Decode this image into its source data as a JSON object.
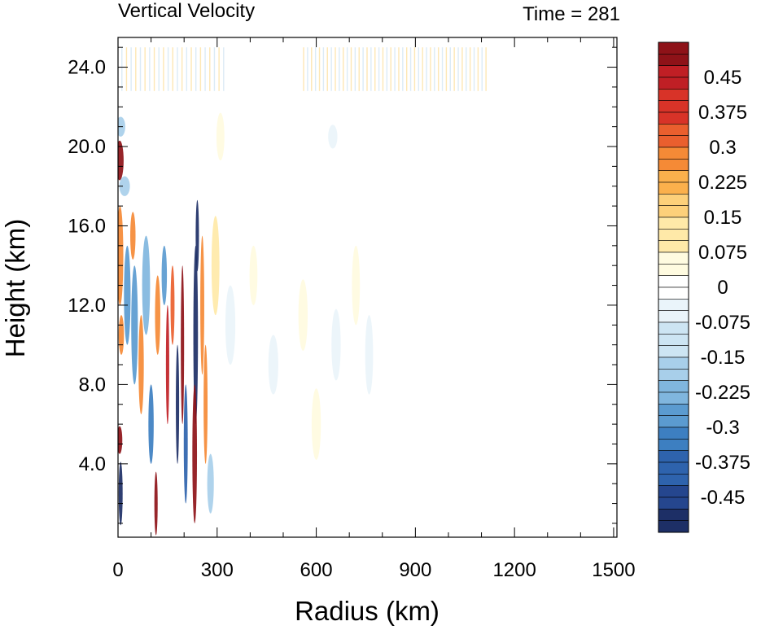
{
  "chart_data": {
    "type": "heatmap",
    "title_left": "Vertical Velocity",
    "title_right": "Time = 281",
    "xlabel": "Radius (km)",
    "ylabel": "Height (km)",
    "xlim": [
      0,
      1510
    ],
    "ylim": [
      0.3,
      25.5
    ],
    "x_ticks": [
      {
        "value": 0,
        "label": "0"
      },
      {
        "value": 300,
        "label": "300"
      },
      {
        "value": 600,
        "label": "600"
      },
      {
        "value": 900,
        "label": "900"
      },
      {
        "value": 1200,
        "label": "1200"
      },
      {
        "value": 1500,
        "label": "1500"
      }
    ],
    "y_ticks": [
      {
        "value": 4,
        "label": "4.0"
      },
      {
        "value": 8,
        "label": "8.0"
      },
      {
        "value": 12,
        "label": "12.0"
      },
      {
        "value": 16,
        "label": "16.0"
      },
      {
        "value": 20,
        "label": "20.0"
      },
      {
        "value": 24,
        "label": "24.0"
      }
    ],
    "grid": false,
    "colorbar": {
      "placement": "right",
      "min": -0.525,
      "max": 0.525,
      "step": 0.025,
      "colors_low_to_high": [
        "#1d2f66",
        "#25468e",
        "#2e63ad",
        "#3d7fc1",
        "#5b9bd0",
        "#80b6de",
        "#a8cfea",
        "#cde5f3",
        "#eaf4fa",
        "#ffffff",
        "#fffbe0",
        "#ffe9a8",
        "#fdd07a",
        "#fbb04c",
        "#f58a36",
        "#ea5f2e",
        "#d83328",
        "#c01f25",
        "#8e1218"
      ],
      "labels": [
        {
          "value": 0.45,
          "text": "0.45"
        },
        {
          "value": 0.375,
          "text": "0.375"
        },
        {
          "value": 0.3,
          "text": "0.3"
        },
        {
          "value": 0.225,
          "text": "0.225"
        },
        {
          "value": 0.15,
          "text": "0.15"
        },
        {
          "value": 0.075,
          "text": "0.075"
        },
        {
          "value": 0,
          "text": "0"
        },
        {
          "value": -0.075,
          "text": "-0.075"
        },
        {
          "value": -0.15,
          "text": "-0.15"
        },
        {
          "value": -0.225,
          "text": "-0.225"
        },
        {
          "value": -0.3,
          "text": "-0.3"
        },
        {
          "value": -0.375,
          "text": "-0.375"
        },
        {
          "value": -0.45,
          "text": "-0.45"
        }
      ]
    },
    "features": [
      {
        "r": 5,
        "z": 19.3,
        "dr": 12,
        "dz": 1.0,
        "w": 0.6
      },
      {
        "r": 8,
        "z": 21.0,
        "dr": 14,
        "dz": 0.5,
        "w": -0.18
      },
      {
        "r": 20,
        "z": 18.0,
        "dr": 16,
        "dz": 0.5,
        "w": -0.15
      },
      {
        "r": 6,
        "z": 14.5,
        "dr": 10,
        "dz": 2.5,
        "w": 0.3
      },
      {
        "r": 10,
        "z": 10.5,
        "dr": 8,
        "dz": 1.0,
        "w": 0.25
      },
      {
        "r": 5,
        "z": 5.2,
        "dr": 8,
        "dz": 0.7,
        "w": 0.5
      },
      {
        "r": 8,
        "z": 2.5,
        "dr": 6,
        "dz": 1.6,
        "w": -0.5
      },
      {
        "r": 28,
        "z": 12.5,
        "dr": 10,
        "dz": 2.5,
        "w": -0.3
      },
      {
        "r": 45,
        "z": 15.5,
        "dr": 8,
        "dz": 1.2,
        "w": 0.3
      },
      {
        "r": 50,
        "z": 11.0,
        "dr": 10,
        "dz": 3.0,
        "w": -0.25
      },
      {
        "r": 70,
        "z": 9.0,
        "dr": 8,
        "dz": 2.5,
        "w": 0.25
      },
      {
        "r": 85,
        "z": 13.0,
        "dr": 12,
        "dz": 2.5,
        "w": -0.2
      },
      {
        "r": 100,
        "z": 6.0,
        "dr": 8,
        "dz": 2.0,
        "w": -0.35
      },
      {
        "r": 115,
        "z": 2.0,
        "dr": 5,
        "dz": 1.6,
        "w": 0.5
      },
      {
        "r": 120,
        "z": 11.5,
        "dr": 8,
        "dz": 2.0,
        "w": 0.25
      },
      {
        "r": 140,
        "z": 13.5,
        "dr": 8,
        "dz": 1.5,
        "w": -0.25
      },
      {
        "r": 150,
        "z": 9.0,
        "dr": 5,
        "dz": 3.0,
        "w": 0.45
      },
      {
        "r": 165,
        "z": 12.0,
        "dr": 6,
        "dz": 2.0,
        "w": 0.35
      },
      {
        "r": 180,
        "z": 7.0,
        "dr": 5,
        "dz": 3.0,
        "w": -0.5
      },
      {
        "r": 195,
        "z": 10.0,
        "dr": 5,
        "dz": 4.0,
        "w": 0.5
      },
      {
        "r": 205,
        "z": 5.0,
        "dr": 6,
        "dz": 3.0,
        "w": -0.4
      },
      {
        "r": 235,
        "z": 10.5,
        "dr": 7,
        "dz": 4.5,
        "w": -0.6
      },
      {
        "r": 232,
        "z": 4.5,
        "dr": 7,
        "dz": 3.5,
        "w": 0.6
      },
      {
        "r": 240,
        "z": 15.5,
        "dr": 5,
        "dz": 1.8,
        "w": -0.5
      },
      {
        "r": 255,
        "z": 12.0,
        "dr": 6,
        "dz": 3.5,
        "w": 0.3
      },
      {
        "r": 265,
        "z": 7.0,
        "dr": 6,
        "dz": 3.0,
        "w": 0.25
      },
      {
        "r": 280,
        "z": 3.0,
        "dr": 10,
        "dz": 1.5,
        "w": -0.15
      },
      {
        "r": 295,
        "z": 14.0,
        "dr": 12,
        "dz": 2.5,
        "w": 0.12
      },
      {
        "r": 340,
        "z": 11.0,
        "dr": 15,
        "dz": 2.0,
        "w": -0.08
      },
      {
        "r": 410,
        "z": 13.5,
        "dr": 12,
        "dz": 1.5,
        "w": 0.08
      },
      {
        "r": 470,
        "z": 9.0,
        "dr": 15,
        "dz": 1.5,
        "w": -0.08
      },
      {
        "r": 560,
        "z": 11.5,
        "dr": 14,
        "dz": 1.8,
        "w": 0.08
      },
      {
        "r": 660,
        "z": 10.0,
        "dr": 14,
        "dz": 1.8,
        "w": -0.07
      },
      {
        "r": 720,
        "z": 13.0,
        "dr": 12,
        "dz": 2.0,
        "w": 0.07
      },
      {
        "r": 760,
        "z": 9.5,
        "dr": 12,
        "dz": 2.0,
        "w": -0.07
      },
      {
        "r": 650,
        "z": 20.5,
        "dr": 14,
        "dz": 0.6,
        "w": -0.08
      },
      {
        "r": 310,
        "z": 20.5,
        "dr": 12,
        "dz": 1.2,
        "w": 0.08
      },
      {
        "r": 600,
        "z": 6.0,
        "dr": 14,
        "dz": 1.8,
        "w": 0.06
      }
    ]
  }
}
